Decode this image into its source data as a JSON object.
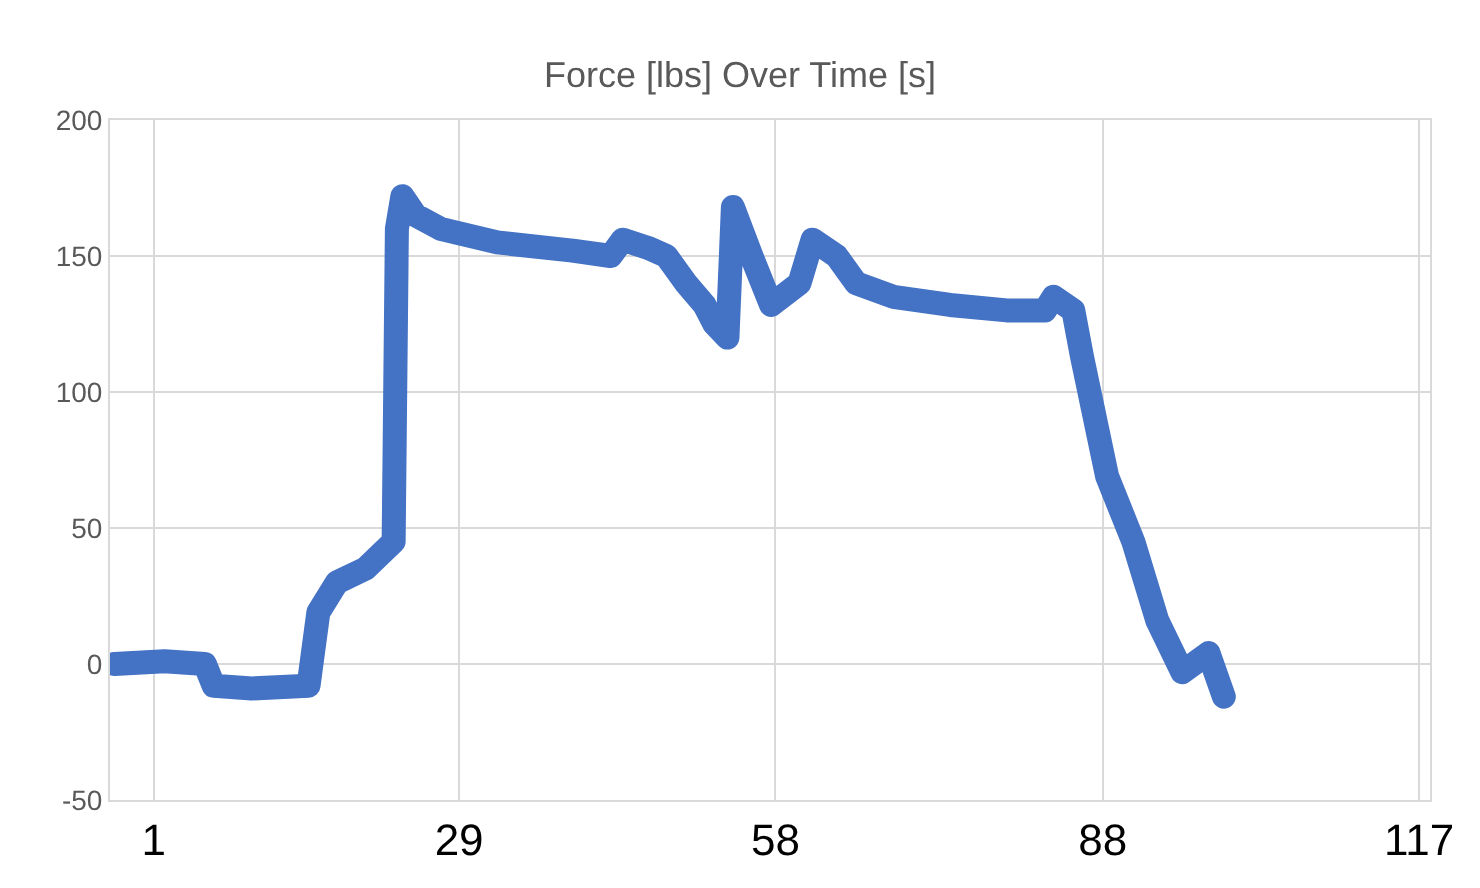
{
  "chart_data": {
    "type": "line",
    "title": "Force [lbs] Over Time [s]",
    "x": [
      -2.6,
      2,
      5.7,
      6.5,
      10,
      15.2,
      16.1,
      17.8,
      20.4,
      23,
      23.3,
      23.8,
      25,
      27.3,
      32.5,
      39.4,
      42.9,
      44,
      46.3,
      48,
      49.8,
      51.5,
      52.4,
      53.6,
      54.1,
      55.8,
      57.6,
      60.2,
      61.4,
      63.6,
      65.4,
      68.8,
      74,
      79.2,
      82.7,
      83.5,
      85.3,
      86.1,
      88.4,
      90.8,
      93,
      95.3,
      97.7,
      99.1
    ],
    "series": [
      {
        "color": "#4472c4",
        "values": [
          0,
          1,
          0,
          -8,
          -9,
          -8,
          19,
          30,
          35,
          45,
          160,
          172,
          165,
          160,
          155,
          152,
          150,
          156,
          153,
          150,
          140,
          132,
          125,
          120,
          168,
          150,
          132,
          140,
          156,
          150,
          140,
          135,
          132,
          130,
          130,
          135,
          130,
          113,
          69,
          45,
          16,
          -3,
          4,
          -12
        ]
      }
    ],
    "xlim": [
      -3,
      118
    ],
    "xticks": [
      1,
      29,
      58,
      88,
      117
    ],
    "ylim": [
      -50,
      200
    ],
    "yticks": [
      -50,
      0,
      50,
      100,
      150,
      200
    ],
    "grid": true,
    "line_style": "solid"
  }
}
